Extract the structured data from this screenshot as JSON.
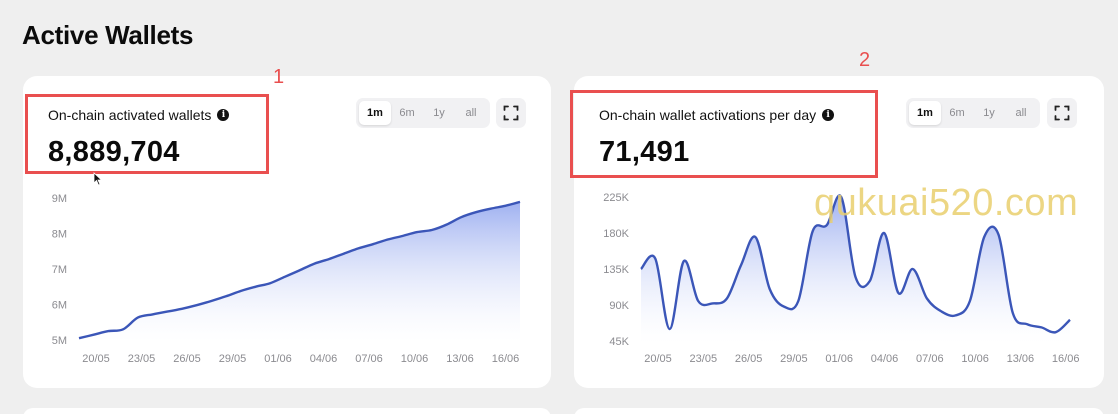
{
  "section": {
    "title": "Active Wallets"
  },
  "cards": [
    {
      "label": "On-chain activated wallets",
      "value": "8,889,704",
      "ranges": [
        "1m",
        "6m",
        "1y",
        "all"
      ],
      "active_range": "1m"
    },
    {
      "label": "On-chain wallet activations per day",
      "value": "71,491",
      "ranges": [
        "1m",
        "6m",
        "1y",
        "all"
      ],
      "active_range": "1m"
    }
  ],
  "annotations": {
    "first": "1",
    "second": "2"
  },
  "watermark": "qukuai520.com",
  "colors": {
    "line": "#3b56b8",
    "fill_top": "#8ea3ee",
    "fill_bottom": "#ffffff",
    "highlight": "#e94f4f"
  },
  "chart_data": [
    {
      "type": "area",
      "title": "",
      "xlabel": "",
      "ylabel": "",
      "x_ticks": [
        "20/05",
        "23/05",
        "26/05",
        "29/05",
        "01/06",
        "04/06",
        "07/06",
        "10/06",
        "13/06",
        "16/06"
      ],
      "y_ticks": [
        "9M",
        "8M",
        "7M",
        "6M",
        "5M"
      ],
      "ylim": [
        5000000,
        9000000
      ],
      "x": [
        "19/05",
        "20/05",
        "21/05",
        "22/05",
        "23/05",
        "24/05",
        "25/05",
        "26/05",
        "27/05",
        "28/05",
        "29/05",
        "30/05",
        "31/05",
        "01/06",
        "02/06",
        "03/06",
        "04/06",
        "05/06",
        "06/06",
        "07/06",
        "08/06",
        "09/06",
        "10/06",
        "11/06",
        "12/06",
        "13/06",
        "14/06",
        "15/06",
        "16/06",
        "17/06",
        "18/06"
      ],
      "values": [
        5050000,
        5150000,
        5250000,
        5300000,
        5630000,
        5720000,
        5800000,
        5880000,
        5980000,
        6100000,
        6230000,
        6380000,
        6500000,
        6600000,
        6780000,
        6960000,
        7150000,
        7280000,
        7430000,
        7580000,
        7700000,
        7830000,
        7930000,
        8040000,
        8100000,
        8250000,
        8460000,
        8600000,
        8700000,
        8780000,
        8889704
      ],
      "grid": false,
      "legend": "none"
    },
    {
      "type": "area",
      "title": "",
      "xlabel": "",
      "ylabel": "",
      "x_ticks": [
        "20/05",
        "23/05",
        "26/05",
        "29/05",
        "01/06",
        "04/06",
        "07/06",
        "10/06",
        "13/06",
        "16/06"
      ],
      "y_ticks": [
        "225K",
        "180K",
        "135K",
        "90K",
        "45K"
      ],
      "ylim": [
        45000,
        225000
      ],
      "x": [
        "19/05",
        "20/05",
        "21/05",
        "22/05",
        "23/05",
        "24/05",
        "25/05",
        "26/05",
        "27/05",
        "28/05",
        "29/05",
        "30/05",
        "31/05",
        "01/06",
        "02/06",
        "03/06",
        "04/06",
        "05/06",
        "06/06",
        "07/06",
        "08/06",
        "09/06",
        "10/06",
        "11/06",
        "12/06",
        "13/06",
        "14/06",
        "15/06",
        "16/06",
        "17/06",
        "18/06"
      ],
      "values": [
        135000,
        148000,
        60000,
        145000,
        95000,
        92000,
        98000,
        140000,
        175000,
        110000,
        88000,
        95000,
        182000,
        190000,
        225000,
        125000,
        120000,
        180000,
        105000,
        135000,
        98000,
        82000,
        77000,
        95000,
        175000,
        178000,
        80000,
        66000,
        62000,
        56000,
        71491
      ],
      "grid": false,
      "legend": "none"
    }
  ]
}
